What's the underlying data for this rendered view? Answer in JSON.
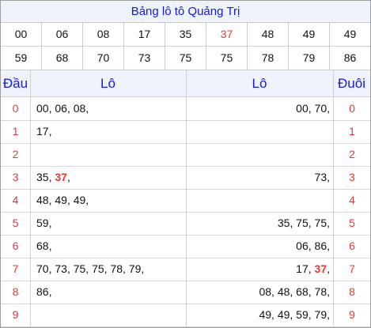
{
  "title": "Bảng lô tô Quảng Trị",
  "numbers_row1": [
    "00",
    "06",
    "08",
    "17",
    "35",
    "37",
    "48",
    "49",
    "49"
  ],
  "numbers_row2": [
    "59",
    "68",
    "70",
    "73",
    "75",
    "75",
    "78",
    "79",
    "86"
  ],
  "highlight_number": "37",
  "headers": {
    "dau": "Đầu",
    "lo_left": "Lô",
    "lo_right": "Lô",
    "duoi": "Đuôi"
  },
  "rows": [
    {
      "digit": "0",
      "left": "00, 06, 08,",
      "right": "00, 70,"
    },
    {
      "digit": "1",
      "left": "17,",
      "right": ""
    },
    {
      "digit": "2",
      "left": "",
      "right": ""
    },
    {
      "digit": "3",
      "left": "35, 37,",
      "right": "73,"
    },
    {
      "digit": "4",
      "left": "48, 49, 49,",
      "right": ""
    },
    {
      "digit": "5",
      "left": "59,",
      "right": "35, 75, 75,"
    },
    {
      "digit": "6",
      "left": "68,",
      "right": "06, 86,"
    },
    {
      "digit": "7",
      "left": "70, 73, 75, 75, 78, 79,",
      "right": "17, 37,"
    },
    {
      "digit": "8",
      "left": "86,",
      "right": "08, 48, 68, 78,"
    },
    {
      "digit": "9",
      "left": "",
      "right": "49, 49, 59, 79,"
    }
  ],
  "colors": {
    "accent_blue": "#1a1ad6",
    "highlight_red": "#e03a3a",
    "header_bg": "#eef3fb"
  }
}
